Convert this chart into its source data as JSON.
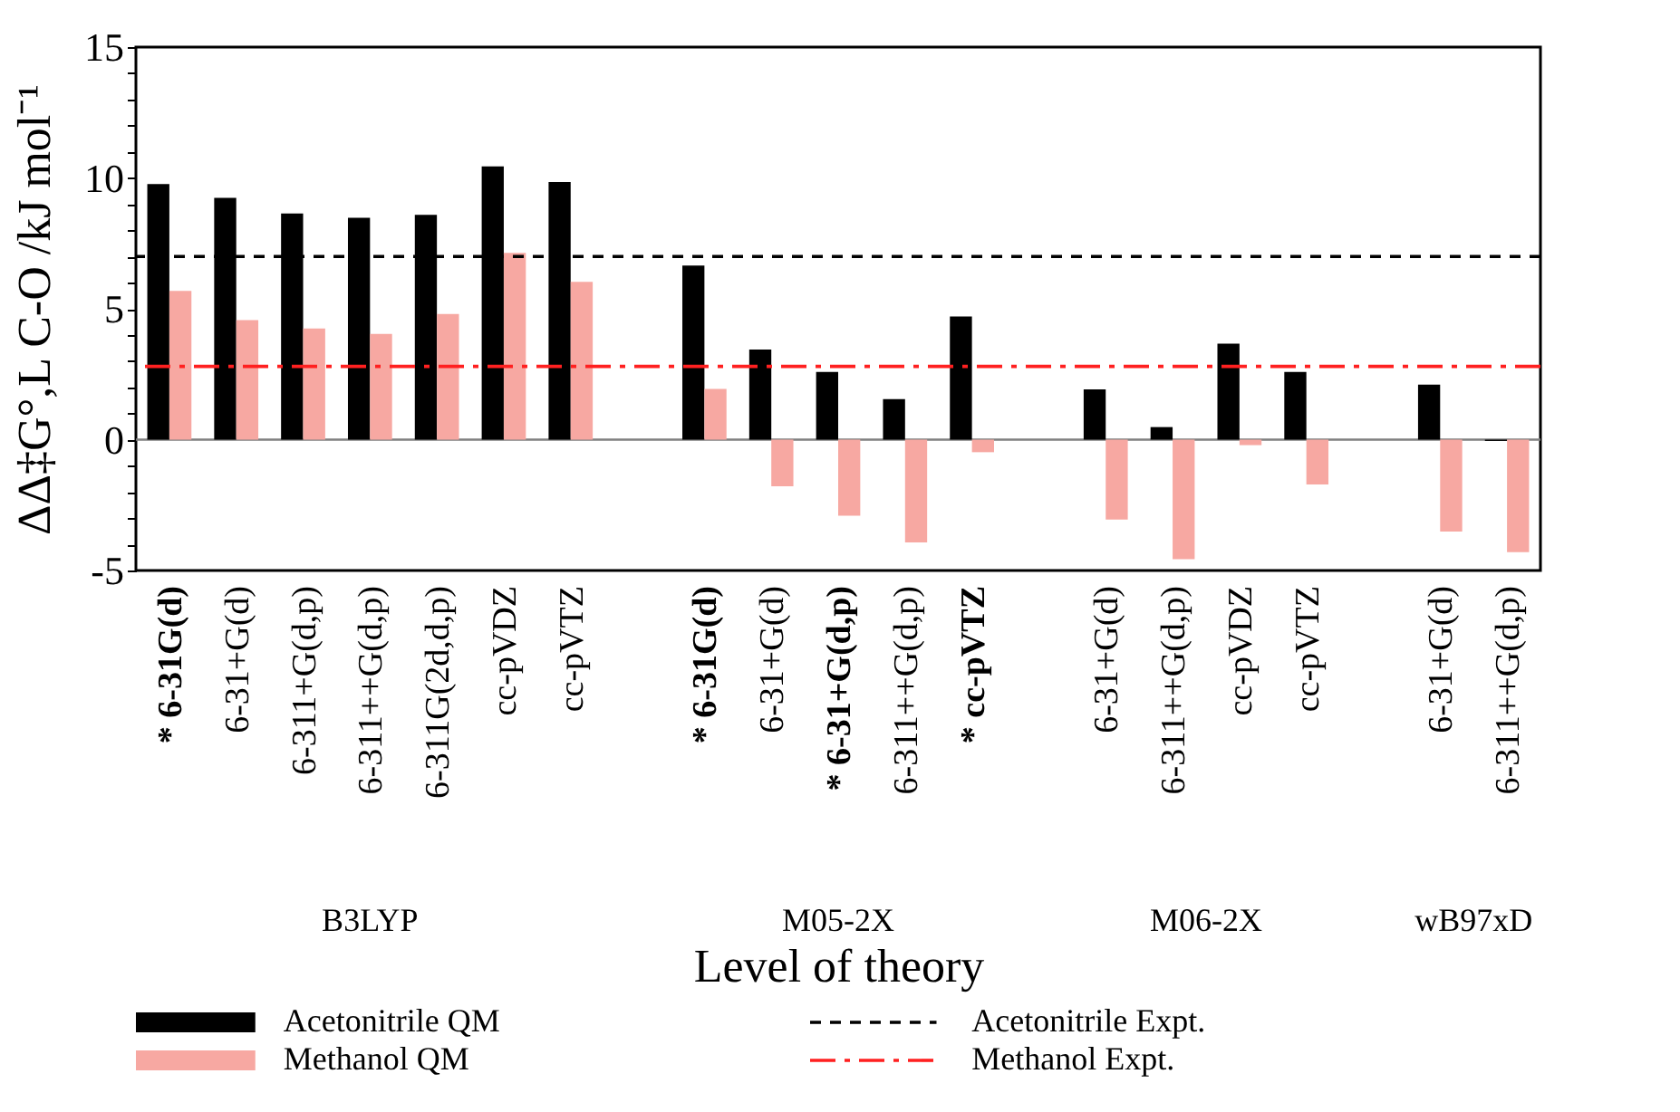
{
  "chart_data": {
    "type": "bar",
    "xlabel": "Level of theory",
    "ylabel": "ΔΔ‡G°,L C-O /kJ mol⁻¹",
    "categories": [
      "* 6-31G(d)",
      "6-31+G(d)",
      "6-311+G(d,p)",
      "6-311++G(d,p)",
      "6-311G(2d,d,p)",
      "cc-pVDZ",
      "cc-pVTZ",
      null,
      "* 6-31G(d)",
      "6-31+G(d)",
      "* 6-31+G(d,p)",
      "6-311++G(d,p)",
      "* cc-pVTZ",
      null,
      "6-31+G(d)",
      "6-311++G(d,p)",
      "cc-pVDZ",
      "cc-pVTZ",
      null,
      "6-31+G(d)",
      "6-311++G(d,p)"
    ],
    "series": [
      {
        "name": "Acetonitrile QM",
        "color": "#000000",
        "values": [
          9.77,
          9.24,
          8.64,
          8.48,
          8.59,
          10.44,
          9.84,
          null,
          6.65,
          3.44,
          2.59,
          1.55,
          4.71,
          null,
          1.92,
          0.48,
          3.67,
          2.59,
          null,
          2.1,
          -0.05
        ]
      },
      {
        "name": "Methanol QM",
        "color": "#f7a8a2",
        "values": [
          5.68,
          4.57,
          4.25,
          4.04,
          4.8,
          7.14,
          6.03,
          null,
          1.94,
          -1.78,
          -2.91,
          -3.93,
          -0.48,
          null,
          -3.05,
          -4.57,
          -0.21,
          -1.71,
          null,
          -3.51,
          -4.3
        ]
      }
    ],
    "ref_lines": [
      {
        "axis": "y",
        "value": 0,
        "color": "#808080",
        "line_style": "solid"
      },
      {
        "axis": "y",
        "value": 7.0,
        "label": "Acetonitrile Expt.",
        "color": "#000000",
        "line_style": "dashed"
      },
      {
        "axis": "y",
        "value": 2.8,
        "label": "Methanol Expt.",
        "color": "#ff2020",
        "line_style": "dashdot"
      }
    ],
    "annotations": [
      "B3LYP",
      "M05-2X",
      "M06-2X",
      "wB97xD"
    ],
    "ylim": [
      -5,
      15
    ],
    "yticks": [
      -5,
      {
        "value": -4,
        "label": null
      },
      {
        "value": -3,
        "label": null
      },
      {
        "value": -2,
        "label": null
      },
      {
        "value": -1,
        "label": null
      },
      0,
      {
        "value": 1,
        "label": null
      },
      {
        "value": 2,
        "label": null
      },
      {
        "value": 3,
        "label": null
      },
      {
        "value": 4,
        "label": null
      },
      5,
      {
        "value": 6,
        "label": null
      },
      {
        "value": 7,
        "label": null
      },
      {
        "value": 8,
        "label": null
      },
      {
        "value": 9,
        "label": null
      },
      10,
      {
        "value": 11,
        "label": null
      },
      {
        "value": 12,
        "label": null
      },
      {
        "value": 13,
        "label": null
      },
      {
        "value": 14,
        "label": null
      },
      15
    ],
    "grid": false,
    "legend": "bottom"
  }
}
